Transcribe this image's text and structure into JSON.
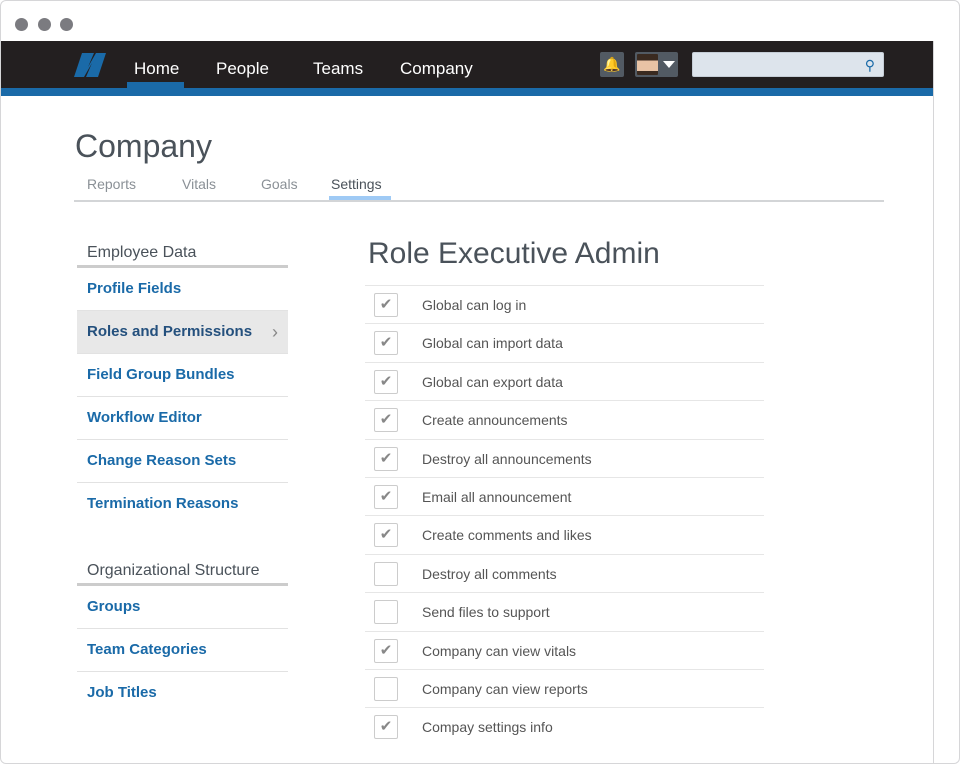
{
  "nav": {
    "items": [
      "Home",
      "People",
      "Teams",
      "Company"
    ],
    "active": "Home",
    "search_placeholder": ""
  },
  "page": {
    "title": "Company",
    "tabs": [
      "Reports",
      "Vitals",
      "Goals",
      "Settings"
    ],
    "active_tab": "Settings"
  },
  "sidebar": {
    "sections": [
      {
        "header": "Employee Data",
        "items": [
          "Profile Fields",
          "Roles and Permissions",
          "Field Group Bundles",
          "Workflow Editor",
          "Change Reason Sets",
          "Termination Reasons"
        ]
      },
      {
        "header": "Organizational Structure",
        "items": [
          "Groups",
          "Team Categories",
          "Job Titles"
        ]
      }
    ],
    "selected": "Roles and Permissions"
  },
  "role": {
    "title": "Role Executive Admin",
    "permissions": [
      {
        "label": "Global can log in",
        "checked": true
      },
      {
        "label": "Global can import data",
        "checked": true
      },
      {
        "label": "Global can export data",
        "checked": true
      },
      {
        "label": "Create announcements",
        "checked": true
      },
      {
        "label": "Destroy all announcements",
        "checked": true
      },
      {
        "label": "Email all announcement",
        "checked": true
      },
      {
        "label": "Create comments and likes",
        "checked": true
      },
      {
        "label": "Destroy all comments",
        "checked": false
      },
      {
        "label": "Send files to support",
        "checked": false
      },
      {
        "label": "Company can view vitals",
        "checked": true
      },
      {
        "label": "Company can view reports",
        "checked": false
      },
      {
        "label": "Compay settings info",
        "checked": true
      }
    ]
  },
  "colors": {
    "nav_bg": "#231f20",
    "accent": "#1a6aa8",
    "tab_underline": "#9fcaf5"
  }
}
